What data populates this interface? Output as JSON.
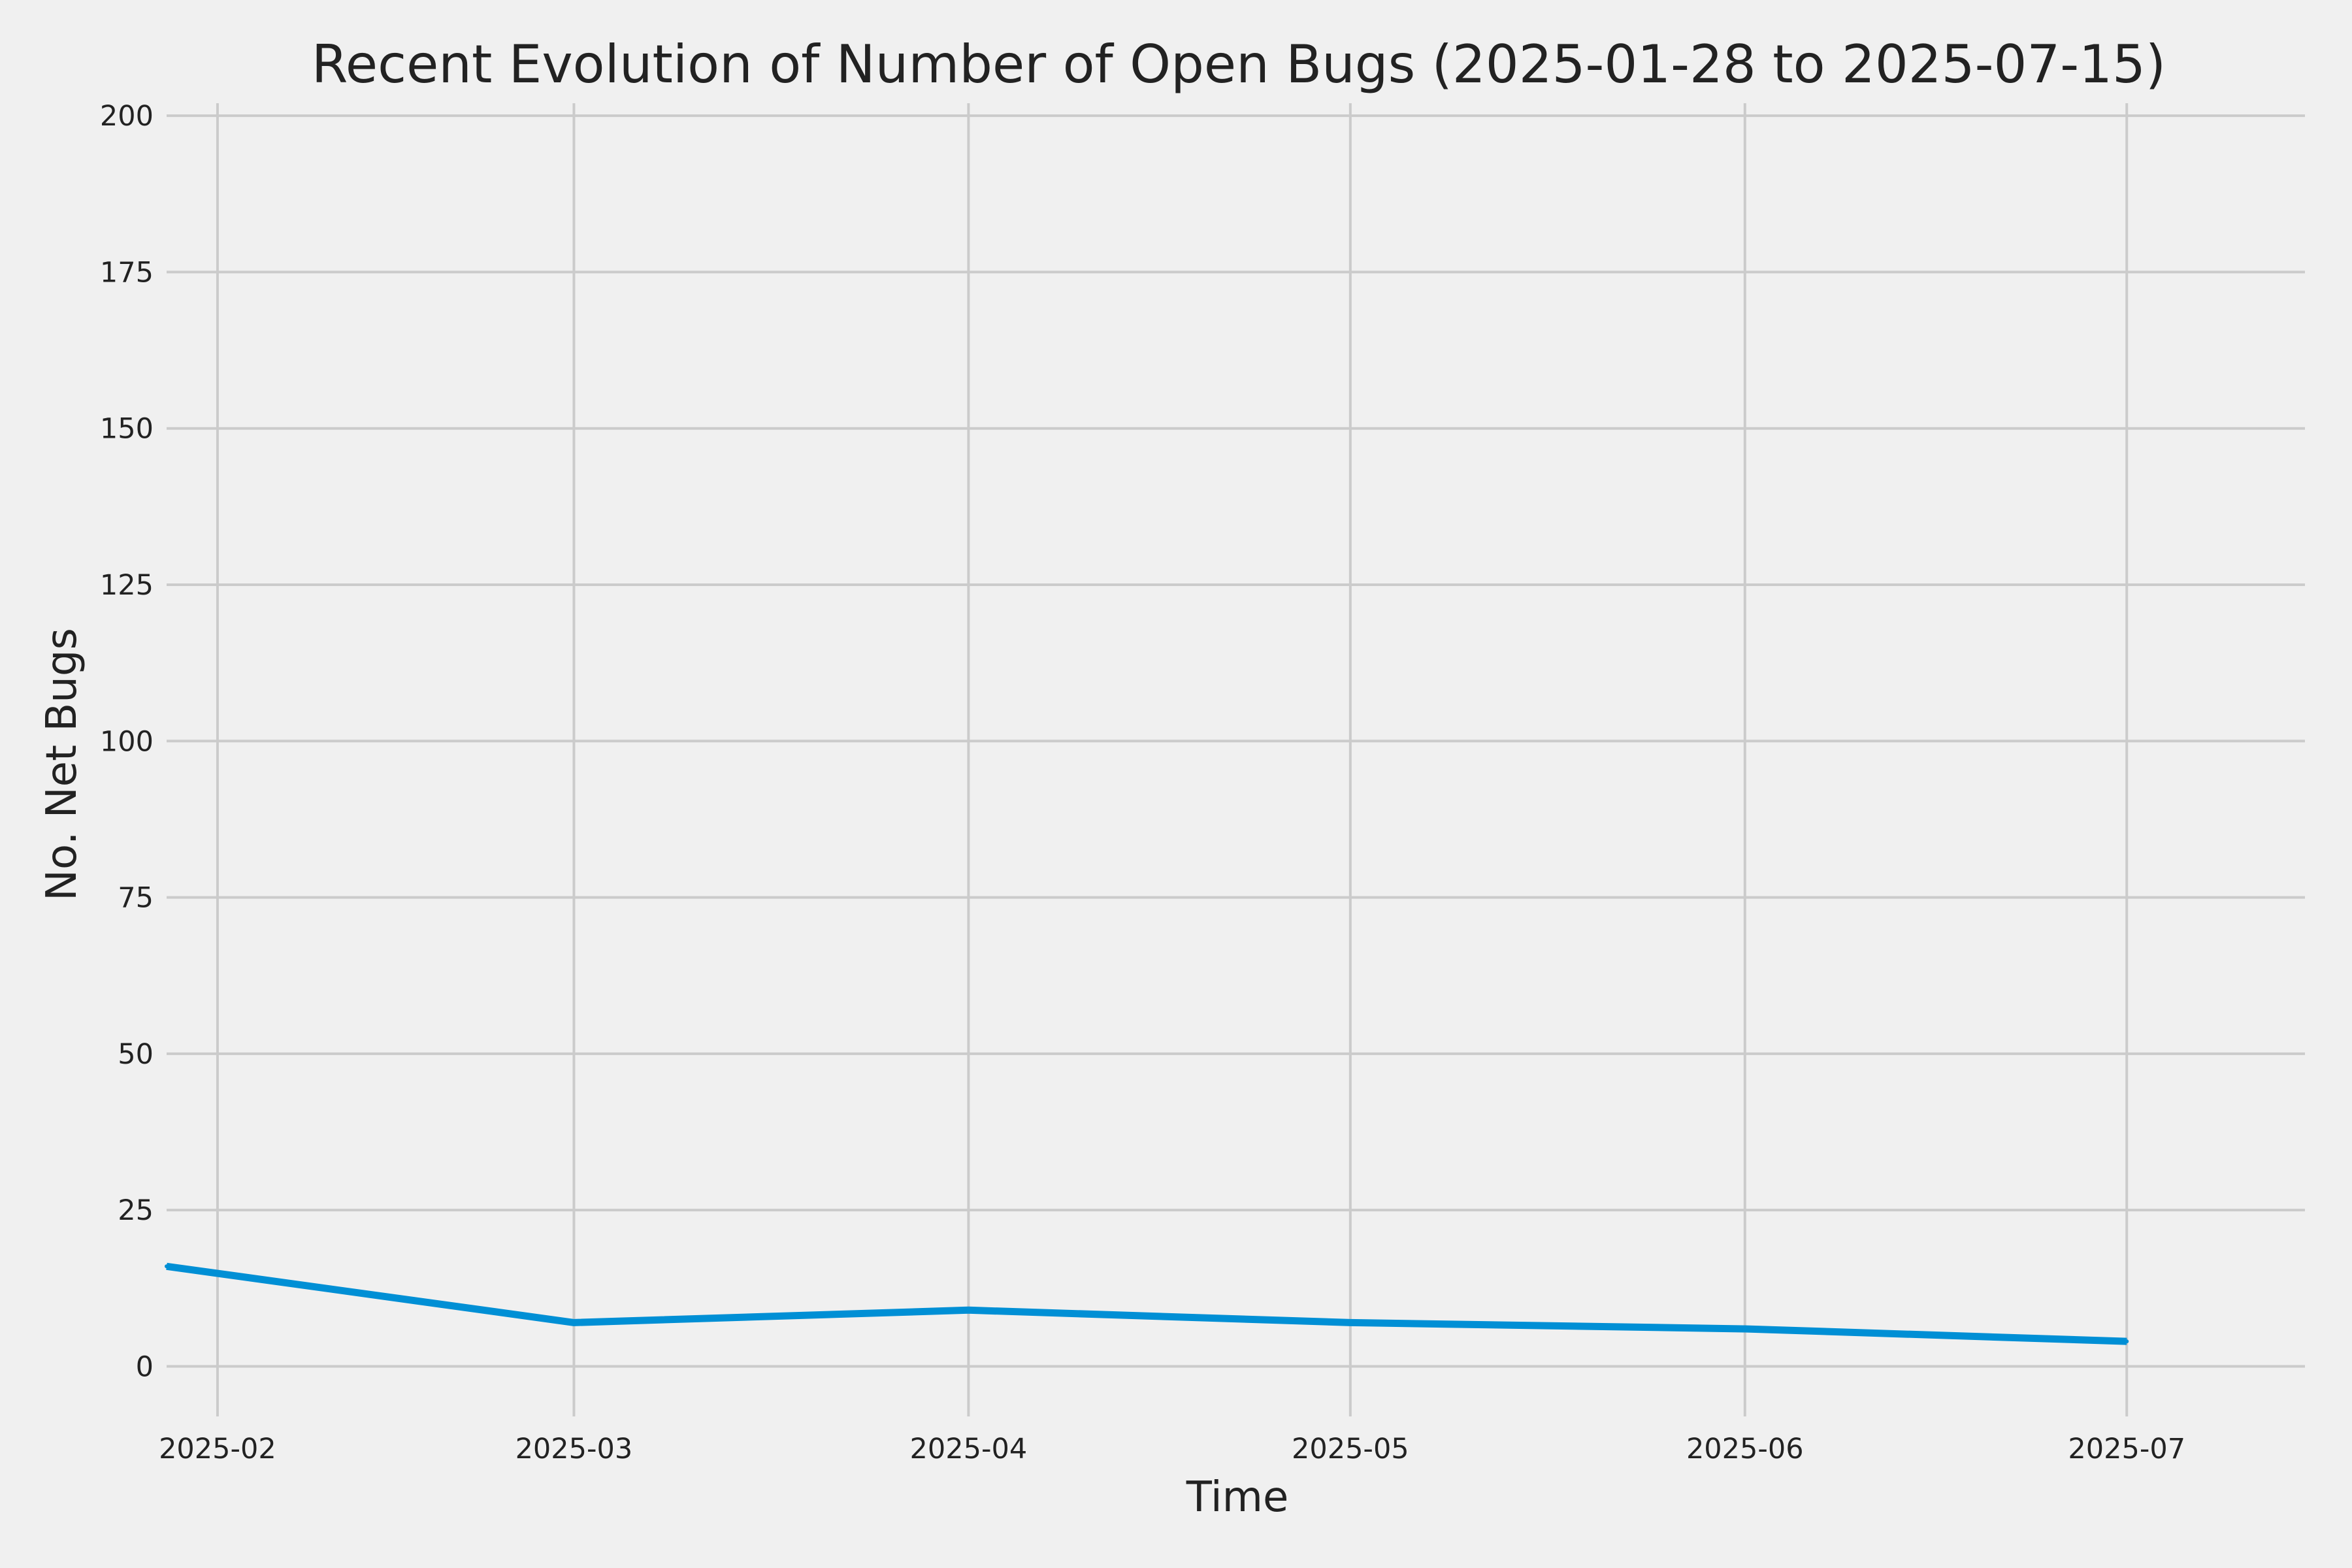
{
  "chart_data": {
    "type": "line",
    "title": "Recent Evolution of Number of Open Bugs (2025-01-28 to 2025-07-15)",
    "xlabel": "Time",
    "ylabel": "No. Net Bugs",
    "xlim": [
      "2025-01-28",
      "2025-07-15"
    ],
    "ylim": [
      -8,
      202
    ],
    "x_ticks": [
      "2025-02",
      "2025-03",
      "2025-04",
      "2025-05",
      "2025-06",
      "2025-07"
    ],
    "x_tick_dates": [
      "2025-02-01",
      "2025-03-01",
      "2025-04-01",
      "2025-05-01",
      "2025-06-01",
      "2025-07-01"
    ],
    "y_ticks": [
      0,
      25,
      50,
      75,
      100,
      125,
      150,
      175,
      200
    ],
    "grid": true,
    "series": [
      {
        "color": "#008fd5",
        "x": [
          "2025-01-28",
          "2025-03-01",
          "2025-04-01",
          "2025-05-01",
          "2025-06-01",
          "2025-07-01"
        ],
        "y": [
          16,
          7,
          9,
          7,
          6,
          4
        ]
      }
    ]
  }
}
